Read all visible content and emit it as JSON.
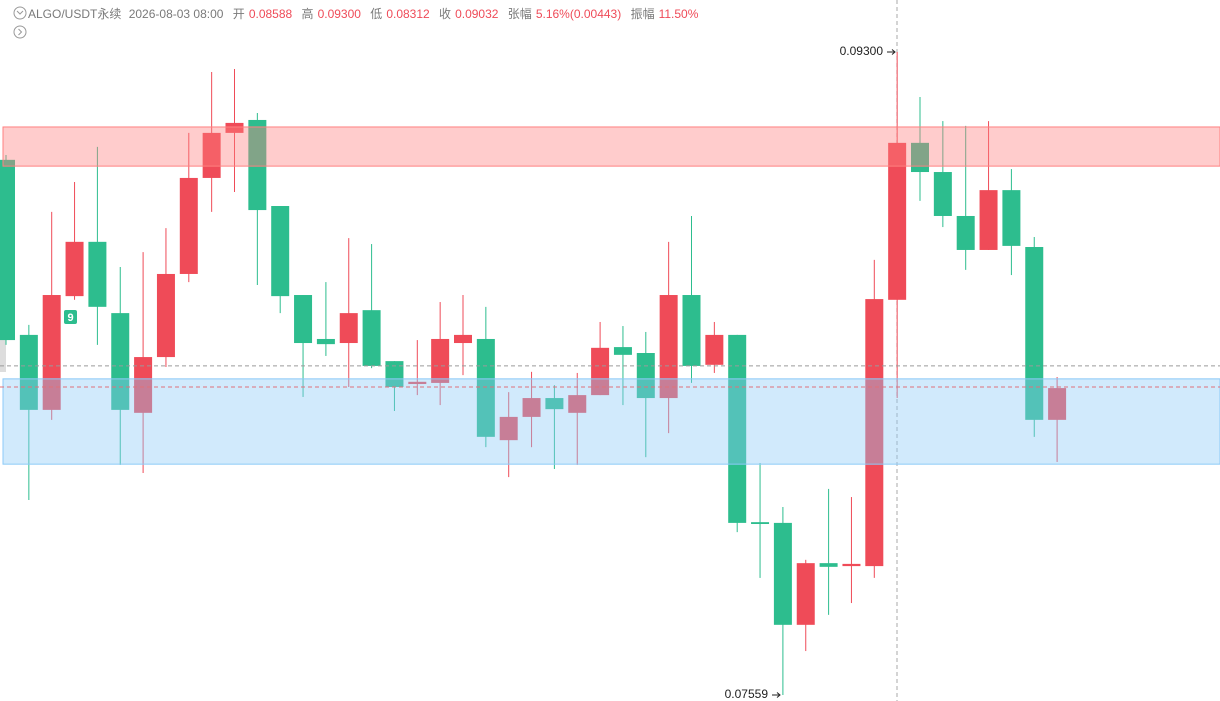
{
  "chart_data": {
    "type": "candlestick",
    "header": {
      "symbol": "ALGO/USDT永续",
      "time": "2026-08-03 08:00",
      "open_label": "开",
      "open": 0.08588,
      "high_label": "高",
      "high": {
        "value": 0.093,
        "label": "0.09300"
      },
      "low_label": "低",
      "low": 0.08312,
      "close_label": "收",
      "close": 0.09032,
      "change_label": "张幅",
      "change_pct": {
        "value": 5.16,
        "label": "5.16%"
      },
      "change": {
        "value": 0.00443,
        "label": "(0.00443)"
      },
      "amplitude_label": "振幅",
      "amplitude": {
        "value": 11.5,
        "label": "11.50%"
      }
    },
    "up_color": "#ef4b58",
    "down_color": "#2dbd8e",
    "open": [
      0.09008,
      0.08534,
      0.08331,
      0.08639,
      0.08786,
      0.08593,
      0.08323,
      0.08474,
      0.08699,
      0.08959,
      0.09081,
      0.09116,
      0.08883,
      0.08642,
      0.08523,
      0.08512,
      0.08601,
      0.08463,
      0.08401,
      0.08404,
      0.08512,
      0.08523,
      0.08249,
      0.08312,
      0.08363,
      0.08323,
      0.08371,
      0.08501,
      0.08485,
      0.08363,
      0.08642,
      0.08453,
      0.08534,
      0.08027,
      0.08025,
      0.07749,
      0.07916,
      0.07908,
      0.07908,
      0.08629,
      0.09054,
      0.08975,
      0.08856,
      0.08764,
      0.08926,
      0.08772,
      0.08304
    ],
    "high": [
      0.09021,
      0.08561,
      0.08867,
      0.08948,
      0.09043,
      0.08718,
      0.08758,
      0.08823,
      0.09081,
      0.09246,
      0.09254,
      0.09135,
      0.08883,
      0.08642,
      0.08677,
      0.08796,
      0.0878,
      0.08463,
      0.0852,
      0.08623,
      0.08642,
      0.0861,
      0.08379,
      0.08434,
      0.08398,
      0.08431,
      0.08569,
      0.08558,
      0.08542,
      0.08786,
      0.08856,
      0.08569,
      0.08534,
      0.08187,
      0.08068,
      0.07925,
      0.08117,
      0.08095,
      0.08737,
      0.093,
      0.09178,
      0.09113,
      0.091,
      0.09113,
      0.08983,
      0.08799,
      0.0842
    ],
    "low": [
      0.08507,
      0.08087,
      0.08304,
      0.08629,
      0.08507,
      0.08182,
      0.0816,
      0.08447,
      0.08677,
      0.08867,
      0.08921,
      0.08669,
      0.08593,
      0.08366,
      0.08477,
      0.08393,
      0.08444,
      0.08328,
      0.08371,
      0.08344,
      0.08425,
      0.0823,
      0.08149,
      0.0823,
      0.08171,
      0.08182,
      0.08371,
      0.08344,
      0.08203,
      0.08268,
      0.08404,
      0.08431,
      0.08,
      0.07876,
      0.07559,
      0.07678,
      0.07776,
      0.07808,
      0.07876,
      0.08363,
      0.08897,
      0.08826,
      0.0871,
      0.08764,
      0.08696,
      0.08258,
      0.0819
    ],
    "close": [
      0.0852,
      0.08331,
      0.08642,
      0.08786,
      0.0861,
      0.08331,
      0.08474,
      0.08699,
      0.08959,
      0.09081,
      0.09108,
      0.08872,
      0.08639,
      0.08512,
      0.08509,
      0.08593,
      0.0845,
      0.08393,
      0.08407,
      0.08523,
      0.08534,
      0.08258,
      0.08312,
      0.08363,
      0.08333,
      0.08371,
      0.08499,
      0.0848,
      0.08363,
      0.08642,
      0.0845,
      0.08534,
      0.08025,
      0.08022,
      0.07749,
      0.07916,
      0.07906,
      0.07914,
      0.08631,
      0.09054,
      0.08975,
      0.08856,
      0.08764,
      0.08926,
      0.08775,
      0.08304,
      0.0839
    ],
    "high_mark": {
      "value": 0.093,
      "label": "0.09300"
    },
    "low_mark": {
      "value": 0.07559,
      "label": "0.07559"
    },
    "zones": [
      {
        "low": 0.08991,
        "high": 0.09097,
        "color": "#ff8080"
      },
      {
        "low": 0.08184,
        "high": 0.08415,
        "color": "#8ccaf8"
      }
    ],
    "price_lines": [
      {
        "value": 0.0845,
        "color": "#9a9a9a"
      },
      {
        "value": 0.08393,
        "color": "#e0707a"
      }
    ],
    "marker": 9
  }
}
